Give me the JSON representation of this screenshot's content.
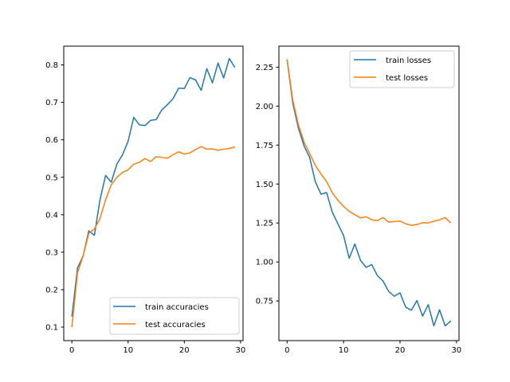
{
  "chart_data": [
    {
      "type": "line",
      "title": "",
      "xlabel": "",
      "ylabel": "",
      "xlim": [
        -1.45,
        30.45
      ],
      "ylim": [
        0.064,
        0.85
      ],
      "x_ticks": [
        0,
        10,
        20,
        30
      ],
      "x_tick_labels": [
        "0",
        "10",
        "20",
        "30"
      ],
      "y_ticks": [
        0.1,
        0.2,
        0.3,
        0.4,
        0.5,
        0.6,
        0.7,
        0.8
      ],
      "y_tick_labels": [
        "0.1",
        "0.2",
        "0.3",
        "0.4",
        "0.5",
        "0.6",
        "0.7",
        "0.8"
      ],
      "grid": false,
      "legend_position": "bottom-right",
      "x": [
        0,
        1,
        2,
        3,
        4,
        5,
        6,
        7,
        8,
        9,
        10,
        11,
        12,
        13,
        14,
        15,
        16,
        17,
        18,
        19,
        20,
        21,
        22,
        23,
        24,
        25,
        26,
        27,
        28,
        29
      ],
      "series": [
        {
          "name": "train accuracies",
          "color": "#1f77b4",
          "values": [
            0.128,
            0.258,
            0.29,
            0.357,
            0.345,
            0.44,
            0.505,
            0.487,
            0.535,
            0.56,
            0.596,
            0.66,
            0.64,
            0.638,
            0.652,
            0.654,
            0.68,
            0.694,
            0.71,
            0.738,
            0.737,
            0.766,
            0.76,
            0.732,
            0.79,
            0.752,
            0.805,
            0.765,
            0.817,
            0.793
          ]
        },
        {
          "name": "test accuracies",
          "color": "#ff7f0e",
          "values": [
            0.1,
            0.245,
            0.29,
            0.35,
            0.362,
            0.39,
            0.44,
            0.48,
            0.5,
            0.513,
            0.52,
            0.535,
            0.54,
            0.55,
            0.542,
            0.555,
            0.553,
            0.551,
            0.56,
            0.568,
            0.562,
            0.565,
            0.574,
            0.582,
            0.575,
            0.576,
            0.572,
            0.575,
            0.577,
            0.581
          ]
        }
      ]
    },
    {
      "type": "line",
      "title": "",
      "xlabel": "",
      "ylabel": "",
      "xlim": [
        -1.45,
        30.45
      ],
      "ylim": [
        0.495,
        2.385
      ],
      "x_ticks": [
        0,
        10,
        20,
        30
      ],
      "x_tick_labels": [
        "0",
        "10",
        "20",
        "30"
      ],
      "y_ticks": [
        0.75,
        1.0,
        1.25,
        1.5,
        1.75,
        2.0,
        2.25
      ],
      "y_tick_labels": [
        "0.75",
        "1.00",
        "1.25",
        "1.50",
        "1.75",
        "2.00",
        "2.25"
      ],
      "grid": false,
      "legend_position": "top-right",
      "x": [
        0,
        1,
        2,
        3,
        4,
        5,
        6,
        7,
        8,
        9,
        10,
        11,
        12,
        13,
        14,
        15,
        16,
        17,
        18,
        19,
        20,
        21,
        22,
        23,
        24,
        25,
        26,
        27,
        28,
        29
      ],
      "series": [
        {
          "name": "train losses",
          "color": "#1f77b4",
          "values": [
            2.3,
            2.02,
            1.86,
            1.745,
            1.67,
            1.515,
            1.435,
            1.445,
            1.32,
            1.245,
            1.17,
            1.023,
            1.115,
            1.01,
            0.965,
            0.983,
            0.912,
            0.877,
            0.81,
            0.78,
            0.802,
            0.71,
            0.69,
            0.752,
            0.652,
            0.726,
            0.59,
            0.693,
            0.59,
            0.622
          ]
        },
        {
          "name": "test losses",
          "color": "#ff7f0e",
          "values": [
            2.3,
            2.04,
            1.88,
            1.77,
            1.695,
            1.62,
            1.565,
            1.515,
            1.445,
            1.395,
            1.357,
            1.325,
            1.303,
            1.283,
            1.29,
            1.27,
            1.265,
            1.285,
            1.255,
            1.26,
            1.262,
            1.245,
            1.235,
            1.24,
            1.252,
            1.25,
            1.262,
            1.27,
            1.285,
            1.25
          ]
        }
      ]
    }
  ]
}
